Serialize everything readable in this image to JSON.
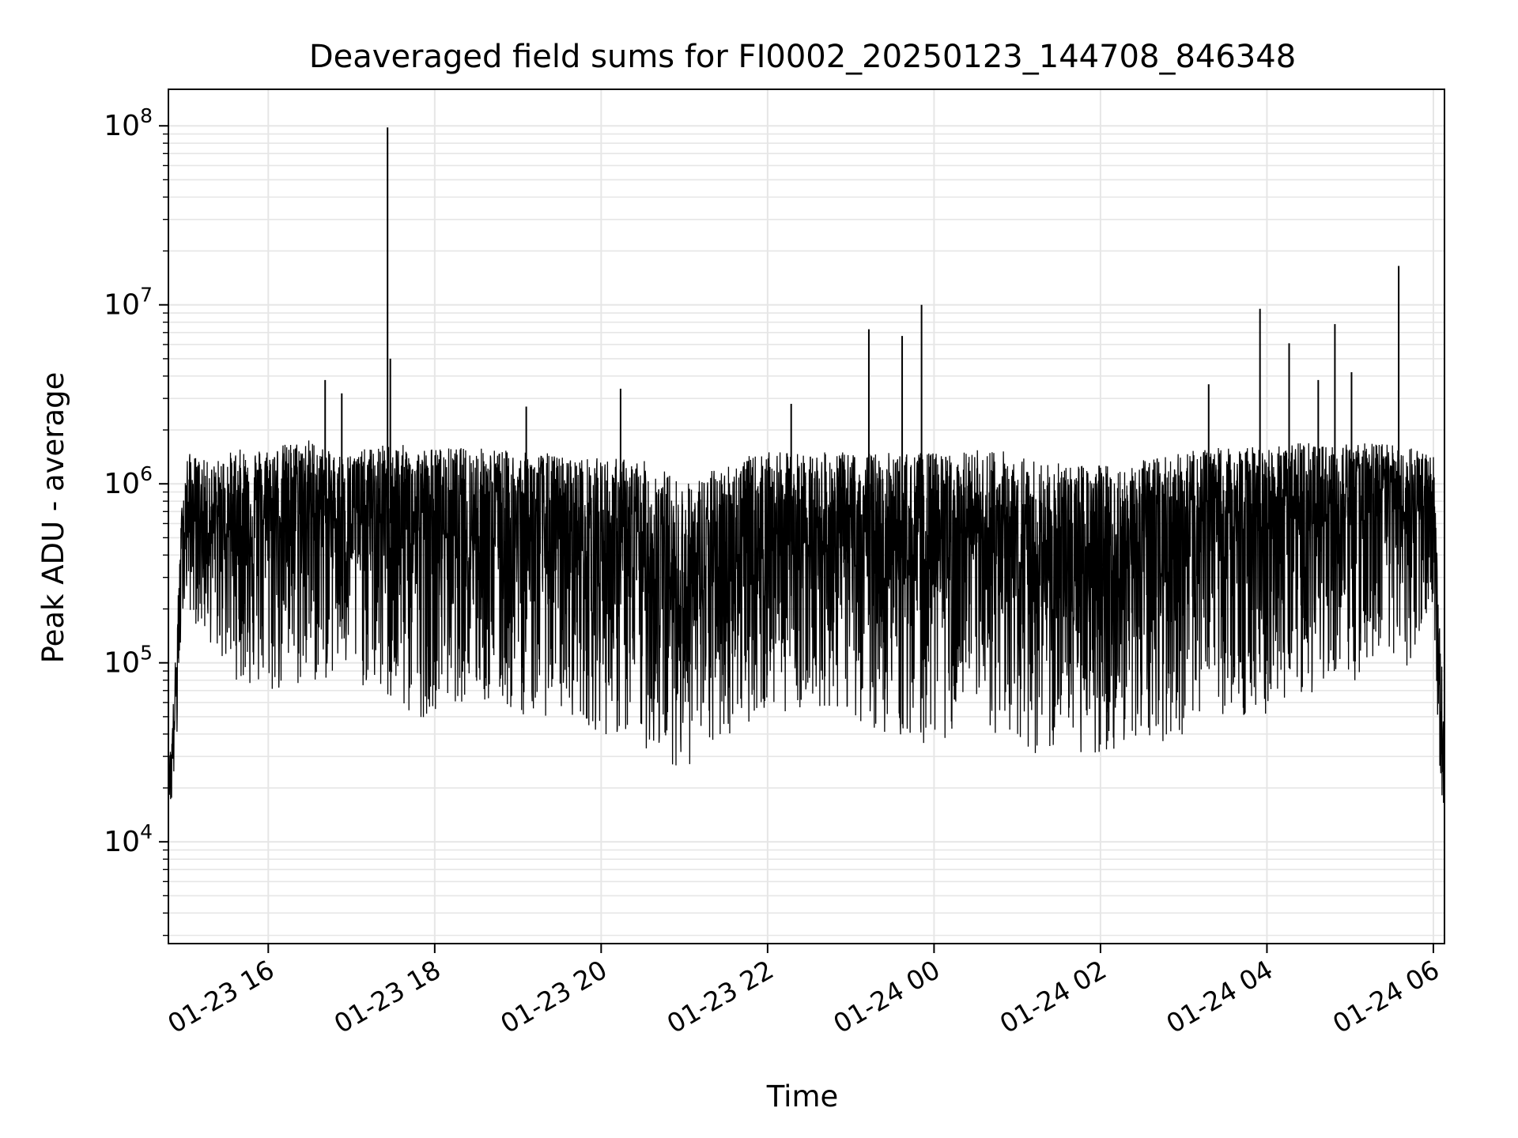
{
  "chart_data": {
    "type": "line",
    "title": "Deaveraged field sums for FI0002_20250123_144708_846348",
    "xlabel": "Time",
    "ylabel": "Peak ADU - average",
    "yscale": "log",
    "ylim": [
      2700,
      160000000
    ],
    "xlim": [
      "2025-01-23 14:48",
      "2025-01-24 06:08"
    ],
    "grid": true,
    "line_color": "#000000",
    "grid_color": "#e6e6e6",
    "x_ticks": [
      {
        "t": "2025-01-23 16:00",
        "label": "01-23 16"
      },
      {
        "t": "2025-01-23 18:00",
        "label": "01-23 18"
      },
      {
        "t": "2025-01-23 20:00",
        "label": "01-23 20"
      },
      {
        "t": "2025-01-23 22:00",
        "label": "01-23 22"
      },
      {
        "t": "2025-01-24 00:00",
        "label": "01-24 00"
      },
      {
        "t": "2025-01-24 02:00",
        "label": "01-24 02"
      },
      {
        "t": "2025-01-24 04:00",
        "label": "01-24 04"
      },
      {
        "t": "2025-01-24 06:00",
        "label": "01-24 06"
      }
    ],
    "y_ticks": [
      {
        "value": 10000,
        "base": "10",
        "exp": "4"
      },
      {
        "value": 100000,
        "base": "10",
        "exp": "5"
      },
      {
        "value": 1000000,
        "base": "10",
        "exp": "6"
      },
      {
        "value": 10000000,
        "base": "10",
        "exp": "7"
      },
      {
        "value": 100000000,
        "base": "10",
        "exp": "8"
      }
    ],
    "series": [
      {
        "x": [
          "2025-01-23 14:48",
          "2025-01-23 14:50",
          "2025-01-23 14:54",
          "2025-01-23 14:58",
          "2025-01-23 15:02",
          "2025-01-23 15:10",
          "2025-01-23 15:20",
          "2025-01-23 15:30",
          "2025-01-23 15:45",
          "2025-01-23 16:00",
          "2025-01-23 16:15",
          "2025-01-23 16:30",
          "2025-01-23 16:45",
          "2025-01-23 17:00",
          "2025-01-23 17:15",
          "2025-01-23 17:30",
          "2025-01-23 17:45",
          "2025-01-23 18:00",
          "2025-01-23 18:20",
          "2025-01-23 18:40",
          "2025-01-23 19:00",
          "2025-01-23 19:20",
          "2025-01-23 19:40",
          "2025-01-23 20:00",
          "2025-01-23 20:20",
          "2025-01-23 20:40",
          "2025-01-23 21:00",
          "2025-01-23 21:20",
          "2025-01-23 21:40",
          "2025-01-23 22:00",
          "2025-01-23 22:20",
          "2025-01-23 22:40",
          "2025-01-23 23:00",
          "2025-01-23 23:20",
          "2025-01-23 23:40",
          "2025-01-24 00:00",
          "2025-01-24 00:20",
          "2025-01-24 00:40",
          "2025-01-24 01:00",
          "2025-01-24 01:20",
          "2025-01-24 01:40",
          "2025-01-24 02:00",
          "2025-01-24 02:20",
          "2025-01-24 02:40",
          "2025-01-24 03:00",
          "2025-01-24 03:20",
          "2025-01-24 03:40",
          "2025-01-24 04:00",
          "2025-01-24 04:20",
          "2025-01-24 04:40",
          "2025-01-24 05:00",
          "2025-01-24 05:20",
          "2025-01-24 05:40",
          "2025-01-24 06:00",
          "2025-01-24 06:04",
          "2025-01-24 06:08"
        ],
        "y_max": [
          30000,
          35000,
          150000,
          900000,
          1500000,
          1400000,
          1300000,
          1500000,
          1600000,
          1600000,
          1700000,
          1800000,
          1500000,
          1500000,
          1600000,
          1700000,
          1600000,
          1600000,
          1600000,
          1600000,
          1500000,
          1500000,
          1400000,
          1400000,
          1400000,
          1300000,
          1000000,
          1200000,
          1400000,
          1500000,
          1500000,
          1500000,
          1500000,
          1500000,
          1500000,
          1500000,
          1500000,
          1600000,
          1500000,
          1300000,
          1300000,
          1300000,
          1300000,
          1400000,
          1500000,
          1600000,
          1600000,
          1600000,
          1700000,
          1700000,
          1700000,
          1700000,
          1600000,
          1500000,
          200000,
          50000
        ],
        "y_min": [
          18000,
          15000,
          30000,
          200000,
          200000,
          150000,
          120000,
          90000,
          70000,
          60000,
          65000,
          70000,
          80000,
          75000,
          70000,
          50000,
          45000,
          55000,
          60000,
          55000,
          50000,
          50000,
          50000,
          40000,
          35000,
          30000,
          25000,
          30000,
          45000,
          50000,
          55000,
          55000,
          50000,
          40000,
          35000,
          35000,
          40000,
          40000,
          35000,
          28000,
          30000,
          30000,
          35000,
          35000,
          40000,
          45000,
          50000,
          50000,
          60000,
          65000,
          60000,
          70000,
          80000,
          200000,
          30000,
          12000
        ],
        "y_mean": [
          22000,
          25000,
          80000,
          500000,
          650000,
          600000,
          550000,
          550000,
          600000,
          650000,
          700000,
          700000,
          650000,
          600000,
          620000,
          600000,
          580000,
          560000,
          560000,
          520000,
          500000,
          500000,
          480000,
          420000,
          380000,
          300000,
          220000,
          280000,
          400000,
          450000,
          480000,
          470000,
          450000,
          420000,
          380000,
          380000,
          400000,
          420000,
          380000,
          320000,
          320000,
          330000,
          350000,
          380000,
          450000,
          520000,
          560000,
          600000,
          650000,
          680000,
          700000,
          720000,
          720000,
          700000,
          80000,
          25000
        ]
      }
    ],
    "spikes": [
      {
        "t": "2025-01-23 16:41",
        "value": 3800000
      },
      {
        "t": "2025-01-23 16:53",
        "value": 3200000
      },
      {
        "t": "2025-01-23 17:26",
        "value": 98000000
      },
      {
        "t": "2025-01-23 17:28",
        "value": 5000000
      },
      {
        "t": "2025-01-23 19:06",
        "value": 2700000
      },
      {
        "t": "2025-01-23 20:14",
        "value": 3400000
      },
      {
        "t": "2025-01-23 22:17",
        "value": 2800000
      },
      {
        "t": "2025-01-23 23:13",
        "value": 7300000
      },
      {
        "t": "2025-01-23 23:37",
        "value": 6700000
      },
      {
        "t": "2025-01-23 23:51",
        "value": 10000000
      },
      {
        "t": "2025-01-24 03:55",
        "value": 9500000
      },
      {
        "t": "2025-01-24 04:16",
        "value": 6100000
      },
      {
        "t": "2025-01-24 04:49",
        "value": 7800000
      },
      {
        "t": "2025-01-24 05:01",
        "value": 4200000
      },
      {
        "t": "2025-01-24 05:35",
        "value": 16500000
      },
      {
        "t": "2025-01-24 03:18",
        "value": 3600000
      },
      {
        "t": "2025-01-24 04:37",
        "value": 3800000
      }
    ]
  }
}
